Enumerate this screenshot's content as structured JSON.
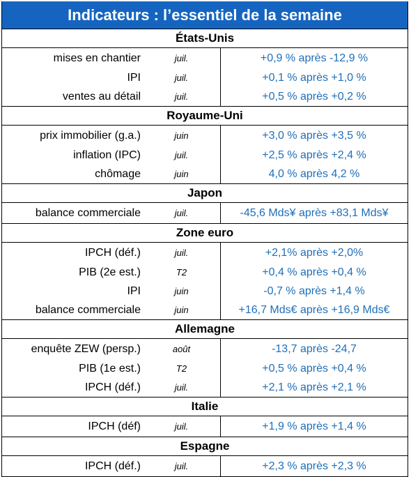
{
  "title": "Indicateurs : l’essentiel de la semaine",
  "colors": {
    "title_bg": "#1565c0",
    "title_text": "#ffffff",
    "value_text": "#1f6fb8",
    "border": "#000000"
  },
  "sections": [
    {
      "name": "États-Unis",
      "rows": [
        {
          "label": "mises en chantier",
          "period": "juil.",
          "value": "+0,9 % après -12,9 %"
        },
        {
          "label": "IPI",
          "period": "juil.",
          "value": "+0,1 % après +1,0 %"
        },
        {
          "label": "ventes au détail",
          "period": "juil.",
          "value": "+0,5 % après +0,2 %"
        }
      ]
    },
    {
      "name": "Royaume-Uni",
      "rows": [
        {
          "label": "prix immobilier (g.a.)",
          "period": "juin",
          "value": "+3,0 % après +3,5 %"
        },
        {
          "label": "inflation (IPC)",
          "period": "juil.",
          "value": "+2,5 % après +2,4 %"
        },
        {
          "label": "chômage",
          "period": "juin",
          "value": "4,0 % après 4,2 %"
        }
      ]
    },
    {
      "name": "Japon",
      "rows": [
        {
          "label": "balance commerciale",
          "period": "juil.",
          "value": "-45,6 Mds¥ après +83,1 Mds¥"
        }
      ]
    },
    {
      "name": "Zone euro",
      "rows": [
        {
          "label": "IPCH (déf.)",
          "period": "juil.",
          "value": "+2,1% après +2,0%"
        },
        {
          "label": "PIB (2e est.)",
          "period": "T2",
          "value": "+0,4 % après +0,4 %"
        },
        {
          "label": "IPI",
          "period": "juin",
          "value": "-0,7 % après +1,4 %"
        },
        {
          "label": "balance commerciale",
          "period": "juin",
          "value": "+16,7 Mds€ après +16,9 Mds€"
        }
      ]
    },
    {
      "name": "Allemagne",
      "rows": [
        {
          "label": "enquête ZEW (persp.)",
          "period": "août",
          "value": "-13,7 après -24,7"
        },
        {
          "label": "PIB (1e est.)",
          "period": "T2",
          "value": "+0,5 % après +0,4 %"
        },
        {
          "label": "IPCH (déf.)",
          "period": "juil.",
          "value": "+2,1 % après +2,1 %"
        }
      ]
    },
    {
      "name": "Italie",
      "rows": [
        {
          "label": "IPCH (déf)",
          "period": "juil.",
          "value": "+1,9 % après +1,4 %"
        }
      ]
    },
    {
      "name": "Espagne",
      "rows": [
        {
          "label": "IPCH (déf.)",
          "period": "juil.",
          "value": "+2,3 % après +2,3 %"
        }
      ]
    }
  ]
}
